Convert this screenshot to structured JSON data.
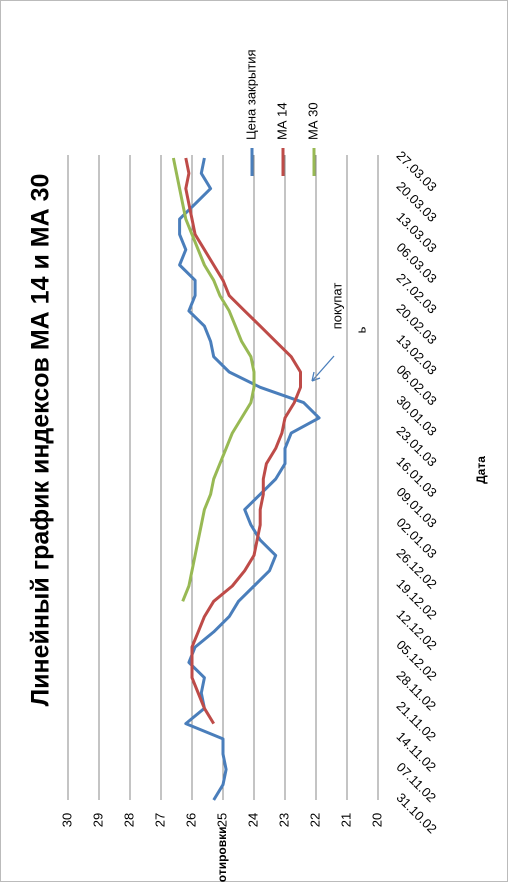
{
  "chart_data": {
    "type": "line",
    "title": "Линейный график  индексов МА 14 и МА 30",
    "x_label": "Дата",
    "y_label": "Котировки",
    "annotation": [
      "покупат",
      "ь"
    ],
    "categories": [
      "31.10.02",
      null,
      "07.11.02",
      null,
      "14.11.02",
      null,
      "21.11.02",
      null,
      "28.11.02",
      null,
      "05.12.02",
      null,
      "12.12.02",
      null,
      "19.12.02",
      null,
      "26.12.02",
      null,
      "02.01.03",
      null,
      "09.01.03",
      null,
      "16.01.03",
      null,
      "23.01.03",
      null,
      "30.01.03",
      null,
      "06.02.03",
      null,
      "13.02.03",
      null,
      "20.02.03",
      null,
      "27.02.03",
      null,
      "06.03.03",
      null,
      "13.03.03",
      null,
      "20.03.03",
      null,
      "27.03.03"
    ],
    "series": [
      {
        "name": "Цена закрытия",
        "color": "#4a7ebb",
        "values": [
          25.3,
          25.0,
          24.9,
          25.0,
          25.0,
          26.2,
          25.6,
          25.7,
          25.6,
          26.1,
          25.9,
          25.3,
          24.8,
          24.5,
          24.0,
          23.5,
          23.3,
          23.8,
          24.1,
          24.3,
          23.8,
          23.3,
          23.0,
          23.0,
          22.8,
          21.9,
          22.4,
          23.8,
          24.8,
          25.3,
          25.4,
          25.6,
          26.1,
          25.9,
          25.9,
          26.4,
          26.2,
          26.4,
          26.4,
          25.9,
          25.4,
          25.7,
          25.6
        ]
      },
      {
        "name": "МА 14",
        "color": "#be4b48",
        "values": [
          null,
          null,
          null,
          null,
          null,
          25.3,
          25.6,
          25.8,
          26.0,
          26.0,
          26.0,
          25.8,
          25.6,
          25.3,
          24.7,
          24.3,
          24.0,
          23.9,
          23.8,
          23.8,
          23.7,
          23.7,
          23.6,
          23.3,
          23.1,
          23.0,
          22.7,
          22.5,
          22.5,
          22.8,
          23.3,
          23.8,
          24.3,
          24.8,
          25.0,
          25.3,
          25.6,
          25.9,
          26.0,
          26.1,
          26.2,
          26.1,
          26.2
        ]
      },
      {
        "name": "МА 30",
        "color": "#98b954",
        "values": [
          null,
          null,
          null,
          null,
          null,
          null,
          null,
          null,
          null,
          null,
          null,
          null,
          null,
          26.3,
          26.1,
          26.0,
          25.9,
          25.8,
          25.7,
          25.6,
          25.4,
          25.3,
          25.1,
          24.9,
          24.7,
          24.4,
          24.1,
          24.0,
          24.0,
          24.1,
          24.4,
          24.6,
          24.8,
          25.1,
          25.3,
          25.6,
          25.8,
          26.0,
          26.2,
          26.3,
          26.4,
          26.5,
          26.6
        ]
      }
    ],
    "ylim": [
      20,
      30
    ],
    "yticks": [
      20,
      21,
      22,
      23,
      24,
      25,
      26,
      27,
      28,
      29,
      30
    ],
    "grid": true
  }
}
